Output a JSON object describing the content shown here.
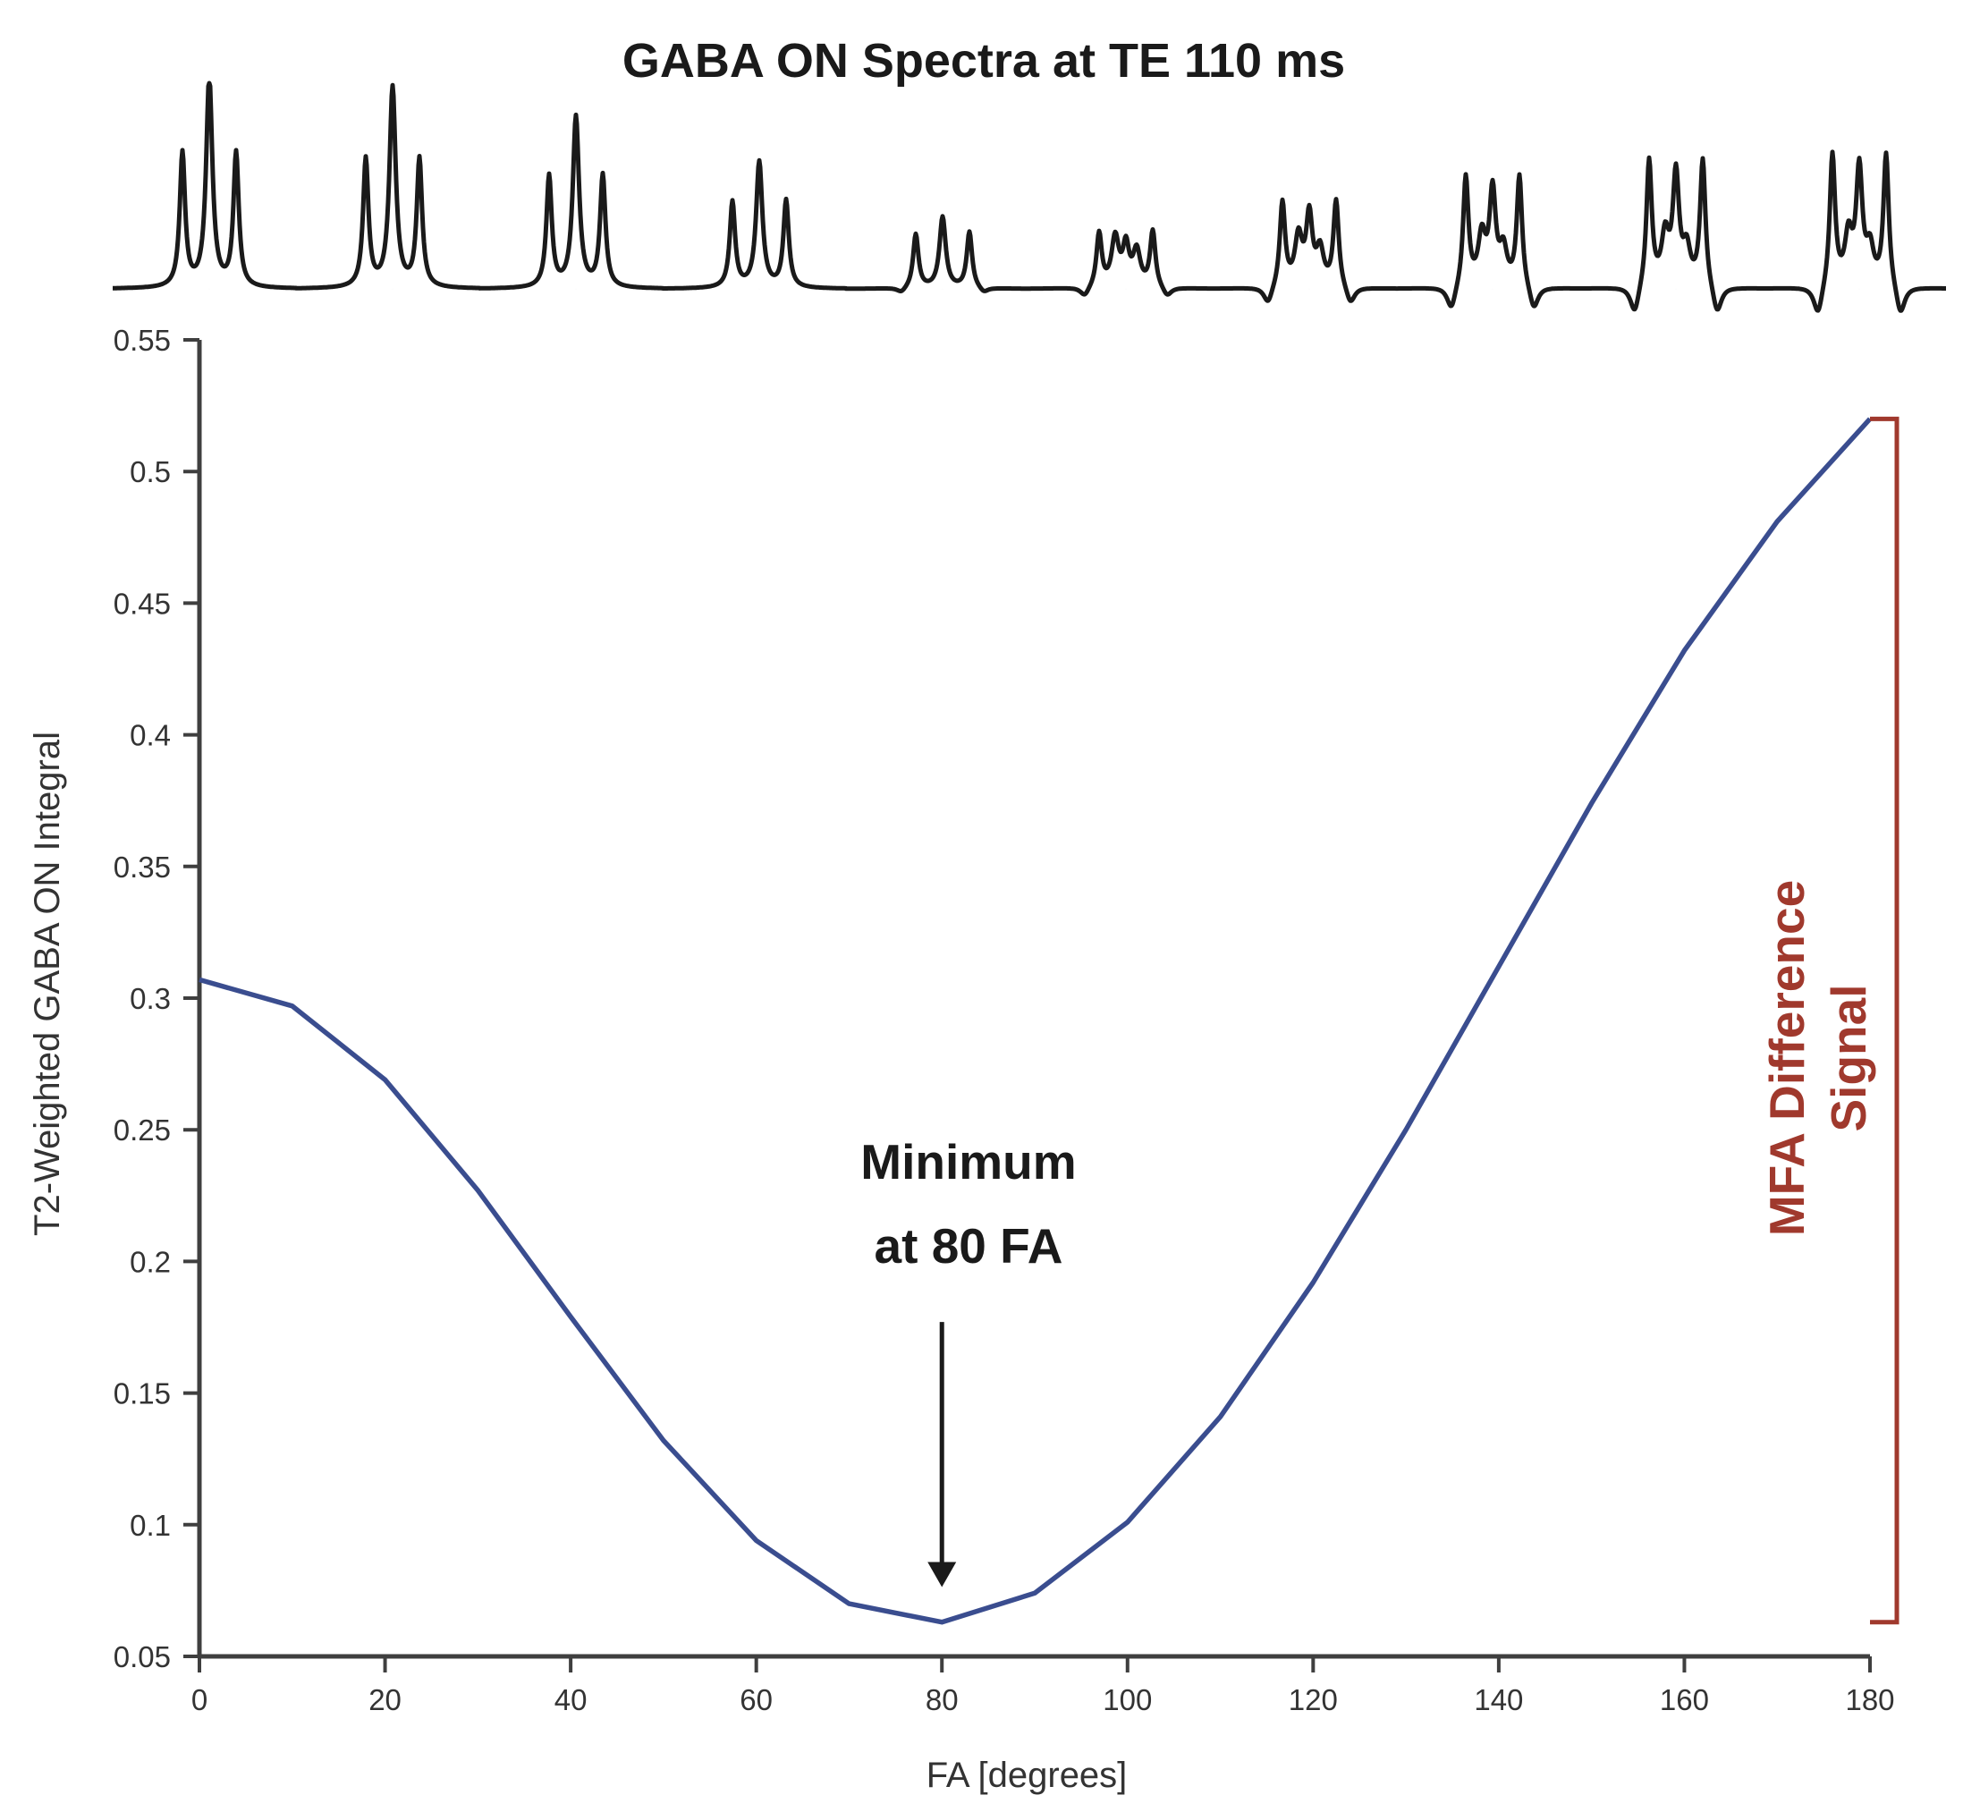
{
  "chart_data": {
    "type": "line",
    "title": "GABA ON Spectra at TE 110 ms",
    "xlabel": "FA [degrees]",
    "ylabel": "T2-Weighted GABA ON Integral",
    "xlim": [
      0,
      180
    ],
    "ylim": [
      0.05,
      0.55
    ],
    "x_ticks": [
      0,
      20,
      40,
      60,
      80,
      100,
      120,
      140,
      160,
      180
    ],
    "x_tick_labels": [
      "0",
      "20",
      "40",
      "60",
      "80",
      "100",
      "120",
      "140",
      "160",
      "180"
    ],
    "y_ticks": [
      0.05,
      0.1,
      0.15,
      0.2,
      0.25,
      0.3,
      0.35,
      0.4,
      0.45,
      0.5,
      0.55
    ],
    "y_tick_labels": [
      "0.05",
      "0.1",
      "0.15",
      "0.2",
      "0.25",
      "0.3",
      "0.35",
      "0.4",
      "0.45",
      "0.5",
      "0.55"
    ],
    "grid": false,
    "series": [
      {
        "name": "T2-Weighted GABA ON Integral",
        "color": "#3a4d8f",
        "x": [
          0,
          10,
          20,
          30,
          40,
          50,
          60,
          70,
          80,
          90,
          100,
          110,
          120,
          130,
          140,
          150,
          160,
          170,
          180
        ],
        "y": [
          0.307,
          0.297,
          0.269,
          0.227,
          0.179,
          0.132,
          0.094,
          0.07,
          0.063,
          0.074,
          0.101,
          0.141,
          0.192,
          0.25,
          0.312,
          0.374,
          0.432,
          0.481,
          0.52
        ]
      }
    ],
    "annotations": [
      {
        "id": "minimum",
        "lines": [
          "Minimum",
          "at 80 FA"
        ],
        "arrow_x": 80,
        "arrow_y_from": 0.177,
        "arrow_y_to": 0.077,
        "color": "#1a1a1a"
      }
    ],
    "bracket": {
      "label_lines": [
        "MFA Difference",
        "Signal"
      ],
      "y_from": 0.063,
      "y_to": 0.52,
      "color": "#a0392d"
    },
    "spectra_inset": {
      "description_key": "GABA ON spectra at each FA",
      "flip_angles": [
        0,
        20,
        40,
        60,
        80,
        100,
        120,
        140,
        160,
        180
      ],
      "color": "#1a1a1a"
    }
  }
}
